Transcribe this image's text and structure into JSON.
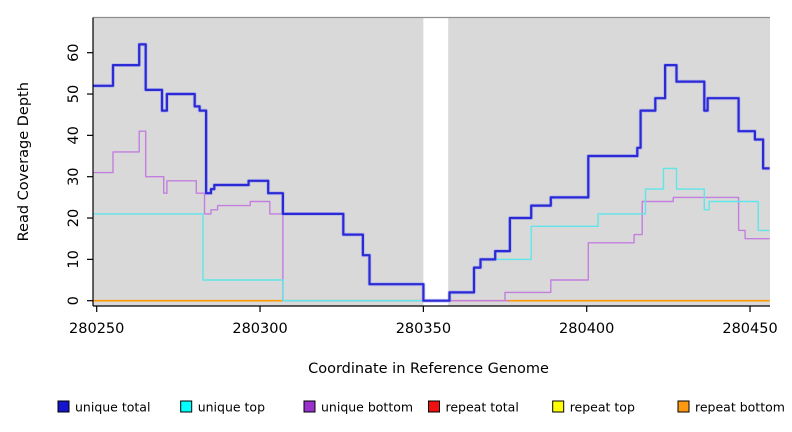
{
  "figure": {
    "kind": "read-coverage-step-plot",
    "panel_bg": "#d9d9d9",
    "panel_border_color": "#8f8f8f",
    "outer_bg": "#ffffff"
  },
  "axes": {
    "x_label": "Coordinate in Reference Genome",
    "y_label": "Read Coverage Depth",
    "x_tick_labels": [
      "280250",
      "280300",
      "280350",
      "280400",
      "280450"
    ],
    "x_tick_values": [
      280250,
      280300,
      280350,
      280400,
      280450
    ],
    "y_tick_labels": [
      "0",
      "10",
      "20",
      "30",
      "40",
      "50",
      "60"
    ],
    "y_tick_values": [
      0,
      10,
      20,
      30,
      40,
      50,
      60
    ]
  },
  "legend": {
    "items": [
      {
        "label": "unique total",
        "color": "#1515ce"
      },
      {
        "label": "unique top",
        "color": "#00ffff"
      },
      {
        "label": "unique bottom",
        "color": "#9932cc"
      },
      {
        "label": "repeat total",
        "color": "#ee1111"
      },
      {
        "label": "repeat top",
        "color": "#ffff00"
      },
      {
        "label": "repeat bottom",
        "color": "#ff9912"
      }
    ]
  },
  "chart_data": {
    "type": "line",
    "subtype": "step",
    "title": "",
    "xlabel": "Coordinate in Reference Genome",
    "ylabel": "Read Coverage Depth",
    "xlim": [
      280249,
      280456
    ],
    "ylim": [
      0,
      62
    ],
    "grid": false,
    "legend_position": "bottom",
    "gap_x": [
      280350,
      280357.6
    ],
    "series": [
      {
        "name": "unique total",
        "color": "#2b2bd5",
        "glow": "#9b9bf0",
        "width": 2.2,
        "steps": [
          [
            280249,
            52
          ],
          [
            280255,
            57
          ],
          [
            280263,
            62
          ],
          [
            280265,
            51
          ],
          [
            280270,
            46
          ],
          [
            280271.5,
            50
          ],
          [
            280280,
            47
          ],
          [
            280281.5,
            46
          ],
          [
            280283.5,
            26
          ],
          [
            280285,
            27
          ],
          [
            280286,
            28
          ],
          [
            280296.5,
            29
          ],
          [
            280302.5,
            26
          ],
          [
            280307,
            21
          ],
          [
            280325.5,
            16
          ],
          [
            280331.5,
            11
          ],
          [
            280333.5,
            4
          ],
          [
            280350,
            0
          ],
          [
            280358,
            2
          ],
          [
            280365.5,
            8
          ],
          [
            280367.5,
            10
          ],
          [
            280372,
            12
          ],
          [
            280376.5,
            20
          ],
          [
            280383,
            23
          ],
          [
            280389,
            25
          ],
          [
            280400.5,
            35
          ],
          [
            280415.5,
            37
          ],
          [
            280416.5,
            46
          ],
          [
            280421,
            49
          ],
          [
            280424,
            57
          ],
          [
            280427.5,
            53
          ],
          [
            280436,
            46
          ],
          [
            280437,
            49
          ],
          [
            280446.5,
            41
          ],
          [
            280451.5,
            39
          ],
          [
            280454,
            32
          ]
        ],
        "x_end": 280456
      },
      {
        "name": "unique top",
        "color": "#5fe6ea",
        "width": 1.4,
        "steps": [
          [
            280249,
            21
          ],
          [
            280282.5,
            5
          ],
          [
            280307,
            0
          ],
          [
            280358,
            2
          ],
          [
            280365.5,
            8
          ],
          [
            280367.5,
            10
          ],
          [
            280383,
            18
          ],
          [
            280403.5,
            21
          ],
          [
            280418,
            27
          ],
          [
            280423.5,
            32
          ],
          [
            280427.5,
            27
          ],
          [
            280436,
            22
          ],
          [
            280437.5,
            24
          ],
          [
            280452.5,
            17
          ]
        ],
        "x_end": 280456
      },
      {
        "name": "unique bottom",
        "color": "#c27fde",
        "width": 1.4,
        "steps": [
          [
            280249,
            31
          ],
          [
            280255,
            36
          ],
          [
            280263,
            41
          ],
          [
            280265,
            30
          ],
          [
            280270.5,
            26
          ],
          [
            280271.5,
            29
          ],
          [
            280280.5,
            26
          ],
          [
            280283,
            21
          ],
          [
            280285,
            22
          ],
          [
            280287,
            23
          ],
          [
            280297,
            24
          ],
          [
            280303,
            21
          ],
          [
            280307,
            0
          ],
          [
            280375,
            2
          ],
          [
            280389,
            5
          ],
          [
            280400.5,
            14
          ],
          [
            280414.5,
            16
          ],
          [
            280417,
            24
          ],
          [
            280426.5,
            25
          ],
          [
            280446.5,
            17
          ],
          [
            280448.5,
            15
          ]
        ],
        "x_end": 280456
      },
      {
        "name": "repeat total",
        "color": "#e38080",
        "width": 1.6,
        "steps": [
          [
            280357.6,
            0
          ]
        ],
        "x_end": 280376.5
      },
      {
        "name": "repeat top",
        "color": "#7cc87c",
        "width": 1.6,
        "steps": [
          [
            280307,
            0
          ]
        ],
        "x_end": 280350
      },
      {
        "name": "repeat bottom",
        "color": "#ff9900",
        "width": 1.6,
        "steps": [
          [
            280249,
            0
          ]
        ],
        "x_end": 280307,
        "extra_segments": [
          [
            280376.5,
            280456,
            0
          ]
        ]
      }
    ]
  }
}
